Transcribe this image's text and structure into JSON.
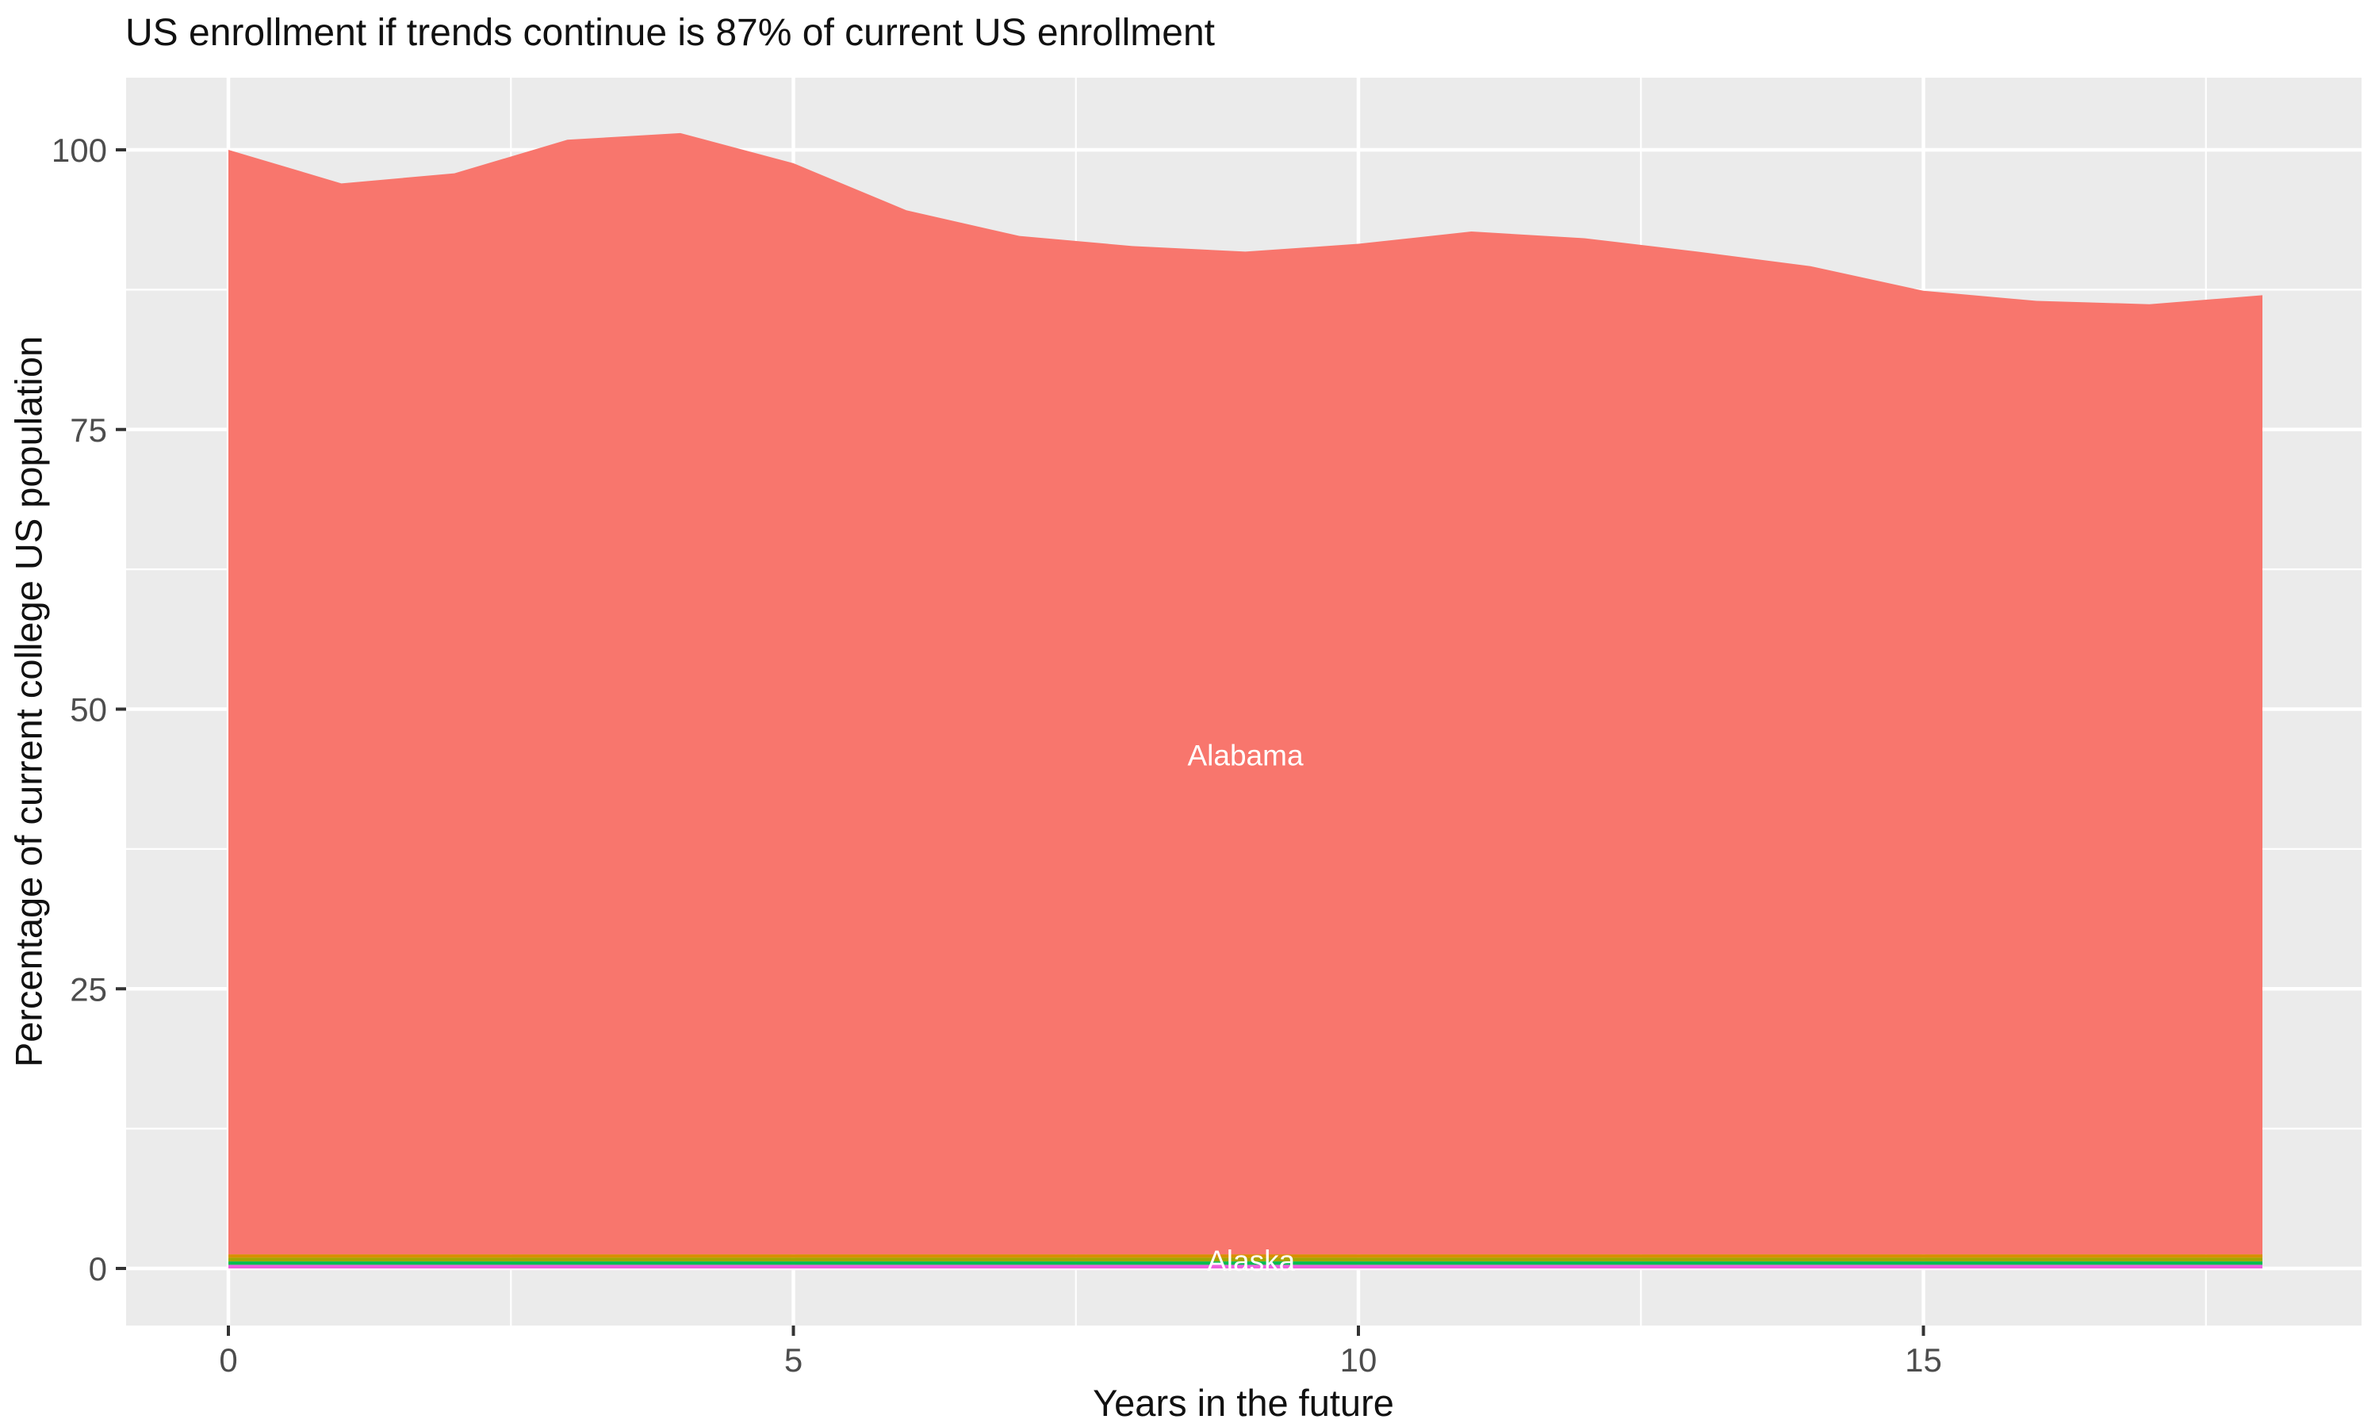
{
  "title": "US enrollment if trends continue is 87% of current US enrollment",
  "colors": {
    "panel_background": "#EBEBEB",
    "grid": "#FFFFFF",
    "tick_mark": "#333333",
    "tick_label": "#4D4D4D",
    "title_text": "#111111",
    "area_label_text": "#FFFFFF"
  },
  "chart_data": {
    "type": "area",
    "stacked": true,
    "title": "US enrollment if trends continue is 87% of current US enrollment",
    "xlabel": "Years in the future",
    "ylabel": "Percentage of current college US population",
    "x": [
      0,
      1,
      2,
      3,
      4,
      5,
      6,
      7,
      8,
      9,
      10,
      11,
      12,
      13,
      14,
      15,
      16,
      17,
      18
    ],
    "xlim": [
      -0.9,
      18.88
    ],
    "ylim": [
      -5.1,
      106.6
    ],
    "x_ticks": [
      0,
      5,
      10,
      15
    ],
    "x_tick_labels": [
      "0",
      "5",
      "10",
      "15"
    ],
    "x_minor_ticks": [
      2.5,
      7.5,
      12.5,
      17.5
    ],
    "y_ticks": [
      0,
      25,
      50,
      75,
      100
    ],
    "y_tick_labels": [
      "0",
      "25",
      "50",
      "75",
      "100"
    ],
    "y_minor_ticks": [
      12.5,
      37.5,
      62.5,
      87.5
    ],
    "grid": true,
    "legend": "none",
    "series": [
      {
        "label": "",
        "color": "#EE5FDF",
        "cumulative_top": 0.33
      },
      {
        "label": "",
        "color": "#00BC51",
        "cumulative_top": 0.63
      },
      {
        "label": "",
        "color": "#A3A500",
        "cumulative_top": 0.97
      },
      {
        "label": "Alaska",
        "color": "#D98E00",
        "cumulative_top": 1.27
      },
      {
        "label": "Alabama",
        "color": "#F8766D",
        "cumulative_top": [
          100,
          97,
          97.9,
          100.9,
          101.5,
          98.8,
          94.6,
          92.3,
          91.4,
          90.9,
          91.6,
          92.7,
          92.1,
          90.9,
          89.6,
          87.4,
          86.5,
          86.2,
          87
        ]
      }
    ],
    "annotations": [
      {
        "text": "Alabama",
        "x": 9.0,
        "y": 45.9
      },
      {
        "text": "Alaska",
        "x": 9.05,
        "y": 0.7
      }
    ]
  }
}
